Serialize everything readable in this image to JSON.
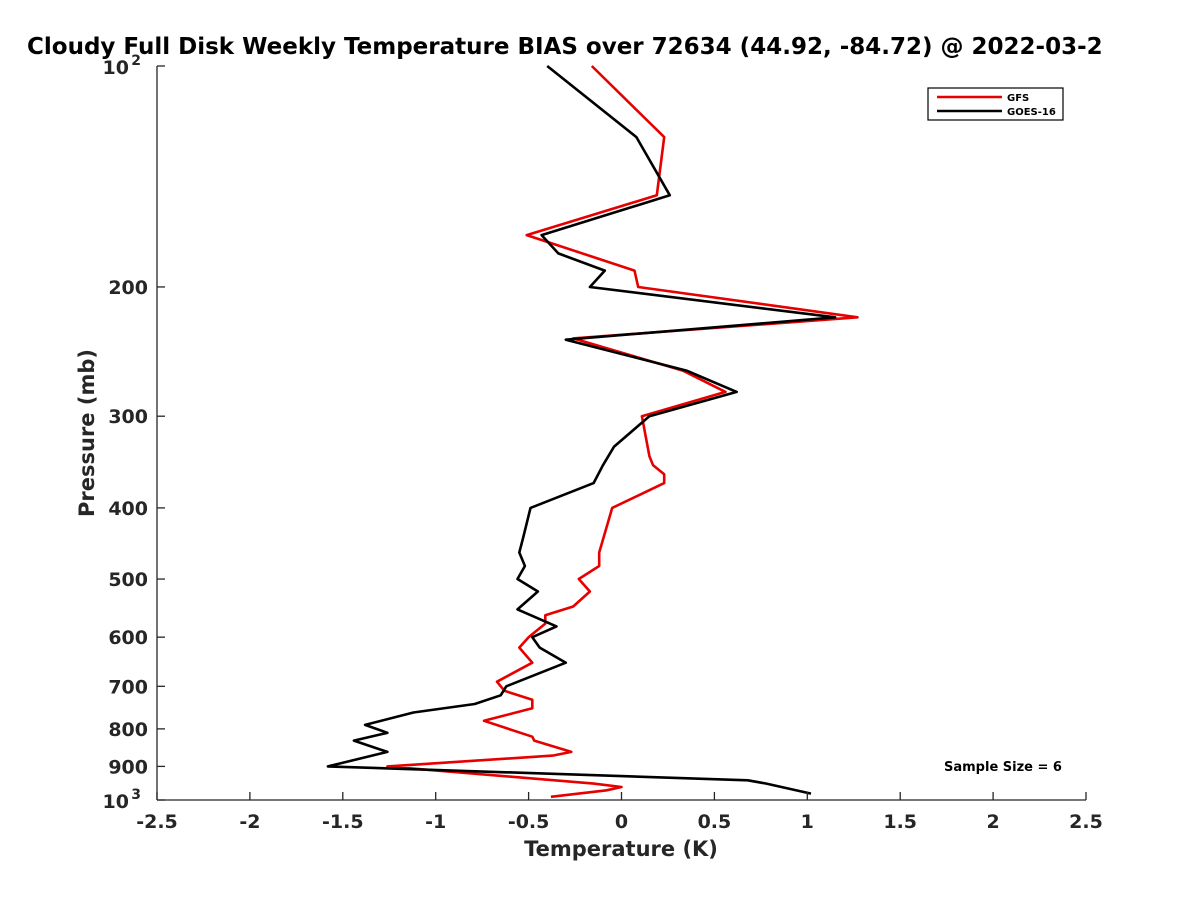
{
  "chart_data": {
    "type": "line",
    "title": "Cloudy Full Disk Weekly Temperature BIAS over 72634 (44.92, -84.72) @ 2022-03-2",
    "xlabel": "Temperature (K)",
    "ylabel": "Pressure (mb)",
    "xlim": [
      -2.5,
      2.5
    ],
    "ylim": [
      100,
      1000
    ],
    "y_scale": "log",
    "y_reversed": true,
    "grid": false,
    "legend_position": "top-right",
    "x_ticks": [
      -2.5,
      -2,
      -1.5,
      -1,
      -0.5,
      0,
      0.5,
      1,
      1.5,
      2,
      2.5
    ],
    "x_tick_labels": [
      "-2.5",
      "-2",
      "-1.5",
      "-1",
      "-0.5",
      "0",
      "0.5",
      "1",
      "1.5",
      "2",
      "2.5"
    ],
    "y_ticks": [
      200,
      300,
      400,
      500,
      600,
      700,
      800,
      900
    ],
    "y_tick_labels": [
      "200",
      "300",
      "400",
      "500",
      "600",
      "700",
      "800",
      "900"
    ],
    "y_end_labels": {
      "top_base": "10",
      "top_exp": "2",
      "bottom_base": "10",
      "bottom_exp": "3"
    },
    "annotation": "Sample Size = 6",
    "series": [
      {
        "name": "GFS",
        "color": "#e60000",
        "points": [
          [
            -0.16,
            100
          ],
          [
            0.23,
            125
          ],
          [
            0.19,
            150
          ],
          [
            -0.51,
            170
          ],
          [
            0.07,
            190
          ],
          [
            0.09,
            200
          ],
          [
            1.27,
            220
          ],
          [
            -0.26,
            235
          ],
          [
            0.33,
            260
          ],
          [
            0.56,
            278
          ],
          [
            0.11,
            300
          ],
          [
            0.15,
            340
          ],
          [
            0.17,
            350
          ],
          [
            0.23,
            360
          ],
          [
            0.23,
            370
          ],
          [
            -0.05,
            400
          ],
          [
            -0.12,
            460
          ],
          [
            -0.12,
            480
          ],
          [
            -0.23,
            500
          ],
          [
            -0.17,
            520
          ],
          [
            -0.26,
            545
          ],
          [
            -0.41,
            560
          ],
          [
            -0.41,
            575
          ],
          [
            -0.5,
            600
          ],
          [
            -0.55,
            620
          ],
          [
            -0.48,
            650
          ],
          [
            -0.67,
            690
          ],
          [
            -0.63,
            710
          ],
          [
            -0.48,
            730
          ],
          [
            -0.48,
            750
          ],
          [
            -0.74,
            780
          ],
          [
            -0.48,
            820
          ],
          [
            -0.47,
            830
          ],
          [
            -0.27,
            860
          ],
          [
            -0.37,
            870
          ],
          [
            -1.26,
            900
          ],
          [
            -0.15,
            950
          ],
          [
            0.0,
            960
          ],
          [
            -0.08,
            970
          ],
          [
            -0.38,
            990
          ]
        ]
      },
      {
        "name": "GOES-16",
        "color": "#000000",
        "points": [
          [
            -0.4,
            100
          ],
          [
            0.08,
            125
          ],
          [
            0.26,
            150
          ],
          [
            -0.43,
            170
          ],
          [
            -0.34,
            180
          ],
          [
            -0.09,
            190
          ],
          [
            -0.17,
            200
          ],
          [
            1.15,
            220
          ],
          [
            -0.3,
            236
          ],
          [
            0.35,
            260
          ],
          [
            0.62,
            278
          ],
          [
            0.15,
            300
          ],
          [
            -0.04,
            330
          ],
          [
            -0.1,
            350
          ],
          [
            -0.15,
            370
          ],
          [
            -0.49,
            400
          ],
          [
            -0.53,
            440
          ],
          [
            -0.55,
            460
          ],
          [
            -0.52,
            480
          ],
          [
            -0.56,
            500
          ],
          [
            -0.45,
            520
          ],
          [
            -0.56,
            550
          ],
          [
            -0.35,
            580
          ],
          [
            -0.48,
            600
          ],
          [
            -0.44,
            620
          ],
          [
            -0.3,
            650
          ],
          [
            -0.62,
            700
          ],
          [
            -0.65,
            720
          ],
          [
            -0.79,
            740
          ],
          [
            -1.12,
            760
          ],
          [
            -1.38,
            790
          ],
          [
            -1.26,
            810
          ],
          [
            -1.44,
            830
          ],
          [
            -1.26,
            860
          ],
          [
            -1.58,
            900
          ],
          [
            0.68,
            940
          ],
          [
            0.78,
            950
          ],
          [
            1.02,
            980
          ]
        ]
      }
    ]
  }
}
